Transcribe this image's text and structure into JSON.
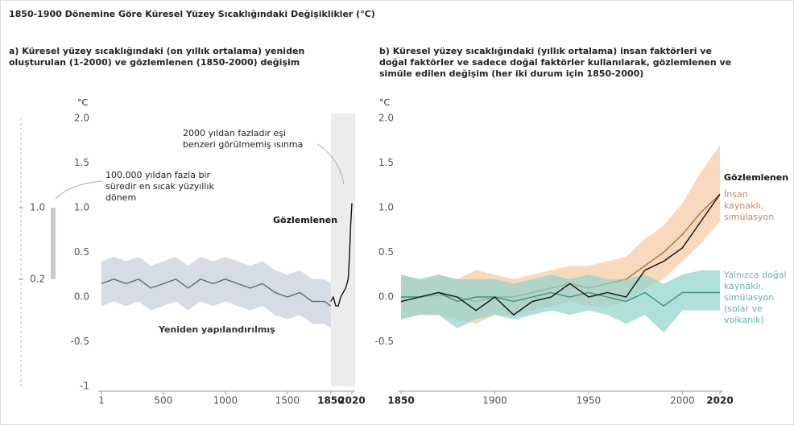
{
  "title": "1850-1900 Dönemine Göre Küresel Yüzey Sıcaklığındaki Değişiklikler (°C)",
  "chart_data": [
    {
      "type": "line",
      "title": "a) Küresel yüzey sıcaklığındaki (on yıllık ortalama) yeniden oluşturulan (1-2000) ve gözlemlenen (1850-2000) değişim",
      "ylabel": "°C",
      "xlim": [
        1,
        2020
      ],
      "xticks": [
        1,
        500,
        1000,
        1500,
        1850,
        2020
      ],
      "ylim": [
        -1,
        2
      ],
      "yticks": [
        -1,
        -0.5,
        {
          "value": 0,
          "label": "0.0"
        },
        0.5,
        {
          "value": 1,
          "label": "1.0"
        },
        1.5,
        {
          "value": 2,
          "label": "2.0"
        }
      ],
      "range": {
        "low": {
          "value": 0.2,
          "label": "0.2"
        },
        "high": {
          "value": 1,
          "label": "1.0"
        },
        "color": "#c6cbd3"
      },
      "annotations": [
        "2000 yıldan fazladır eşi benzeri görülmemiş ısınma",
        "100.000 yıldan fazla bir süredir en sıcak yüzyıllık dönem"
      ],
      "series": [
        {
          "name": "Yeniden yapılandırılmış",
          "color": "#5b6b82",
          "band_color": "#c3cddb",
          "x": [
            1,
            100,
            200,
            300,
            400,
            500,
            600,
            700,
            800,
            900,
            1000,
            1100,
            1200,
            1300,
            1400,
            1500,
            1600,
            1700,
            1800,
            1850
          ],
          "values": [
            0.15,
            0.2,
            0.15,
            0.2,
            0.1,
            0.15,
            0.2,
            0.1,
            0.2,
            0.15,
            0.2,
            0.15,
            0.1,
            0.15,
            0.05,
            0.0,
            0.05,
            -0.05,
            -0.05,
            -0.1
          ],
          "low": [
            -0.1,
            -0.05,
            -0.1,
            -0.05,
            -0.15,
            -0.1,
            -0.05,
            -0.15,
            -0.05,
            -0.1,
            -0.05,
            -0.1,
            -0.15,
            -0.1,
            -0.2,
            -0.25,
            -0.2,
            -0.3,
            -0.3,
            -0.35
          ],
          "high": [
            0.4,
            0.45,
            0.4,
            0.45,
            0.35,
            0.4,
            0.45,
            0.35,
            0.45,
            0.4,
            0.45,
            0.4,
            0.35,
            0.4,
            0.3,
            0.25,
            0.3,
            0.2,
            0.2,
            0.15
          ]
        },
        {
          "name": "Gözlemlenen",
          "color": "#111111",
          "x": [
            1850,
            1870,
            1890,
            1910,
            1930,
            1950,
            1970,
            1990,
            2000,
            2010,
            2020
          ],
          "values": [
            -0.05,
            0.0,
            -0.1,
            -0.1,
            0.0,
            0.05,
            0.1,
            0.2,
            0.45,
            0.8,
            1.05
          ]
        }
      ]
    },
    {
      "type": "line",
      "title": "b) Küresel yüzey sıcaklığındaki (yıllık ortalama) insan faktörleri ve doğal faktörler ve sadece doğal faktörler kullanılarak, gözlemlenen ve simüle edilen değişim (her iki durum için 1850-2000)",
      "ylabel": "°C",
      "xlim": [
        1850,
        2020
      ],
      "xticks": [
        1850,
        1900,
        1950,
        2000,
        2020
      ],
      "ylim": [
        -1,
        2
      ],
      "yticks": [
        -0.5,
        {
          "value": 0,
          "label": "0.0"
        },
        0.5,
        {
          "value": 1,
          "label": "1.0"
        },
        1.5,
        {
          "value": 2,
          "label": "2.0"
        }
      ],
      "x": [
        1850,
        1860,
        1870,
        1880,
        1890,
        1900,
        1910,
        1920,
        1930,
        1940,
        1950,
        1960,
        1970,
        1980,
        1990,
        2000,
        2010,
        2020
      ],
      "series": [
        {
          "name": "İnsan kaynaklı, simülasyon",
          "color": "#a0703a",
          "band_color": "#f6c9a2",
          "values": [
            0.0,
            0.0,
            0.02,
            0.0,
            -0.05,
            0.0,
            0.0,
            0.05,
            0.1,
            0.15,
            0.1,
            0.15,
            0.2,
            0.35,
            0.5,
            0.7,
            0.95,
            1.15
          ],
          "low": [
            -0.25,
            -0.2,
            -0.2,
            -0.25,
            -0.3,
            -0.2,
            -0.2,
            -0.15,
            -0.1,
            -0.05,
            -0.1,
            -0.1,
            -0.05,
            0.1,
            0.2,
            0.4,
            0.6,
            0.85
          ],
          "high": [
            0.25,
            0.2,
            0.25,
            0.2,
            0.3,
            0.25,
            0.2,
            0.25,
            0.3,
            0.35,
            0.35,
            0.4,
            0.45,
            0.65,
            0.8,
            1.05,
            1.4,
            1.7
          ]
        },
        {
          "name": "Yalnızca doğal kaynaklı, simülasyon (solar ve volkanik)",
          "color": "#3f8f8a",
          "band_color": "#8fd3cb",
          "values": [
            0.0,
            0.0,
            0.05,
            -0.05,
            0.0,
            0.0,
            -0.05,
            0.0,
            0.05,
            0.0,
            0.05,
            0.0,
            -0.05,
            0.05,
            -0.1,
            0.05,
            0.05,
            0.05
          ],
          "low": [
            -0.25,
            -0.2,
            -0.2,
            -0.35,
            -0.25,
            -0.2,
            -0.25,
            -0.2,
            -0.15,
            -0.2,
            -0.15,
            -0.2,
            -0.3,
            -0.2,
            -0.4,
            -0.15,
            -0.15,
            -0.15
          ],
          "high": [
            0.25,
            0.2,
            0.25,
            0.2,
            0.2,
            0.2,
            0.15,
            0.2,
            0.25,
            0.2,
            0.25,
            0.2,
            0.2,
            0.25,
            0.15,
            0.25,
            0.3,
            0.3
          ]
        },
        {
          "name": "Gözlemlenen",
          "color": "#111111",
          "values": [
            -0.05,
            0.0,
            0.05,
            0.0,
            -0.15,
            0.0,
            -0.2,
            -0.05,
            0.0,
            0.15,
            0.0,
            0.05,
            0.0,
            0.3,
            0.4,
            0.55,
            0.85,
            1.15
          ]
        }
      ]
    }
  ]
}
